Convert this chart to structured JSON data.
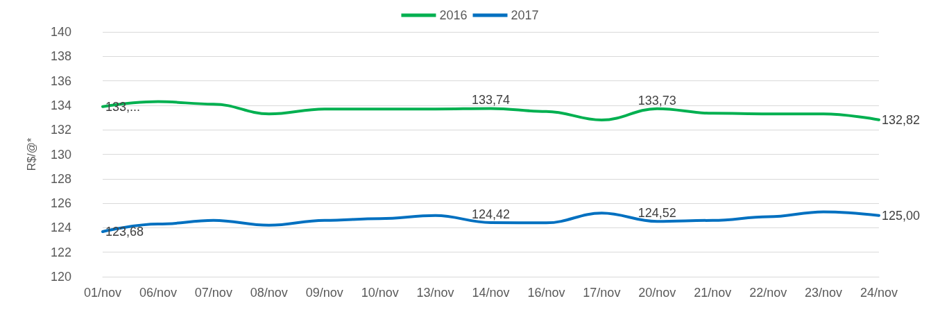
{
  "chart_data": {
    "type": "line",
    "ylabel": "R$/@*",
    "categories": [
      "01/nov",
      "06/nov",
      "07/nov",
      "08/nov",
      "09/nov",
      "10/nov",
      "13/nov",
      "14/nov",
      "16/nov",
      "17/nov",
      "20/nov",
      "21/nov",
      "22/nov",
      "23/nov",
      "24/nov"
    ],
    "series": [
      {
        "name": "2016",
        "color": "#00b050",
        "values": [
          133.9,
          134.3,
          134.1,
          133.3,
          133.7,
          133.7,
          133.7,
          133.74,
          133.5,
          132.8,
          133.73,
          133.35,
          133.3,
          133.3,
          132.82
        ],
        "value_labels": [
          "133,...",
          null,
          null,
          null,
          null,
          null,
          null,
          "133,74",
          null,
          null,
          "133,73",
          null,
          null,
          null,
          "132,82"
        ]
      },
      {
        "name": "2017",
        "color": "#0070c0",
        "values": [
          123.68,
          124.3,
          124.6,
          124.2,
          124.6,
          124.75,
          125.0,
          124.42,
          124.4,
          125.2,
          124.52,
          124.6,
          124.9,
          125.3,
          125.0
        ],
        "value_labels": [
          "123,68",
          null,
          null,
          null,
          null,
          null,
          null,
          "124,42",
          null,
          null,
          "124,52",
          null,
          null,
          null,
          "125,00"
        ]
      }
    ],
    "ylim": [
      120,
      140
    ],
    "yticks": [
      120,
      122,
      124,
      126,
      128,
      130,
      132,
      134,
      136,
      138,
      140
    ],
    "grid": "y",
    "legend": "top",
    "marker": "none",
    "line_style": "solid"
  }
}
